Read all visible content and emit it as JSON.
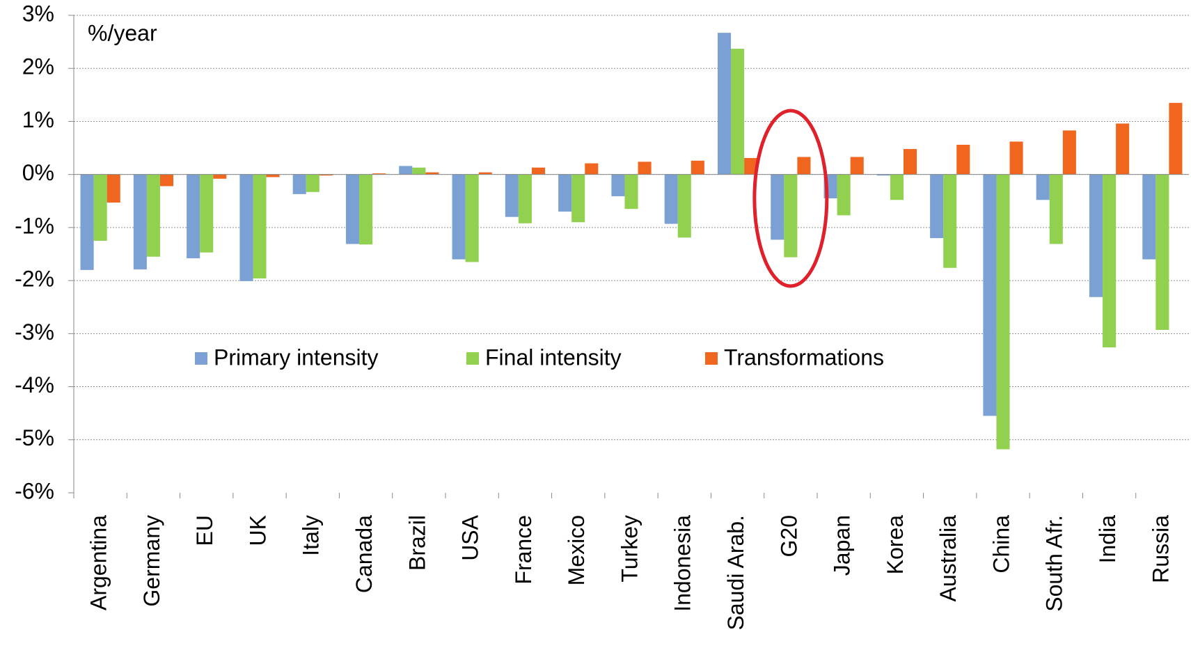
{
  "chart_data": {
    "type": "bar",
    "annotation": "%/year",
    "categories": [
      "Argentina",
      "Germany",
      "EU",
      "UK",
      "Italy",
      "Canada",
      "Brazil",
      "USA",
      "France",
      "Mexico",
      "Turkey",
      "Indonesia",
      "Saudi Arab.",
      "G20",
      "Japan",
      "Korea",
      "Australia",
      "China",
      "South Afr.",
      "India",
      "Russia"
    ],
    "series": [
      {
        "name": "Primary intensity",
        "color": "#7aa0d4",
        "values": [
          -1.8,
          -1.79,
          -1.58,
          -2.01,
          -0.37,
          -1.31,
          0.16,
          -1.6,
          -0.8,
          -0.7,
          -0.41,
          -0.93,
          2.67,
          -1.23,
          -0.45,
          -0.02,
          -1.2,
          -4.55,
          -0.48,
          -2.31,
          -1.6
        ]
      },
      {
        "name": "Final intensity",
        "color": "#92d050",
        "values": [
          -1.25,
          -1.55,
          -1.47,
          -1.96,
          -0.33,
          -1.32,
          0.13,
          -1.65,
          -0.92,
          -0.9,
          -0.65,
          -1.19,
          2.37,
          -1.56,
          -0.77,
          -0.48,
          -1.76,
          -5.18,
          -1.31,
          -3.26,
          -2.93
        ]
      },
      {
        "name": "Transformations",
        "color": "#f0661e",
        "values": [
          -0.53,
          -0.22,
          -0.08,
          -0.05,
          -0.02,
          0.02,
          0.04,
          0.04,
          0.13,
          0.21,
          0.24,
          0.26,
          0.31,
          0.33,
          0.33,
          0.48,
          0.56,
          0.62,
          0.83,
          0.96,
          1.35
        ]
      }
    ],
    "ylim": [
      -6,
      3
    ],
    "yticks": [
      {
        "value": -6,
        "label": "-6%"
      },
      {
        "value": -5,
        "label": "-5%"
      },
      {
        "value": -4,
        "label": "-4%"
      },
      {
        "value": -3,
        "label": "-3%"
      },
      {
        "value": -2,
        "label": "-2%"
      },
      {
        "value": -1,
        "label": "-1%"
      },
      {
        "value": 0,
        "label": "0%"
      },
      {
        "value": 1,
        "label": "1%"
      },
      {
        "value": 2,
        "label": "2%"
      },
      {
        "value": 3,
        "label": "3%"
      }
    ],
    "grid": true
  }
}
